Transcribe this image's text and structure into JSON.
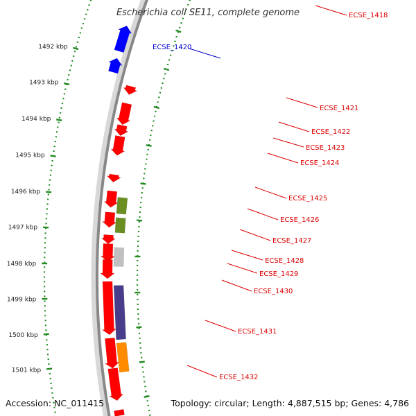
{
  "title": "Escherichia coli SE11, complete genome",
  "footer": {
    "accession": "Accession: NC_011415",
    "topology": "Topology: circular; Length: 4,887,515 bp; Genes: 4,786"
  },
  "colors": {
    "backbone": "#888888",
    "tick_dots": "#228B22",
    "forward_label": "#0000cc",
    "reverse_label": "#dd0000",
    "gene_red": "#ff0000",
    "gene_blue": "#0000ff",
    "gene_olive": "#6b8e23",
    "gene_grey": "#c0c0c0",
    "gene_navy": "#483d8b",
    "gene_orange": "#ff8c00"
  },
  "kbp_ticks": [
    "1492 kbp",
    "1493 kbp",
    "1494 kbp",
    "1495 kbp",
    "1496 kbp",
    "1497 kbp",
    "1498 kbp",
    "1499 kbp",
    "1500 kbp",
    "1501 kbp"
  ],
  "gene_labels": [
    {
      "text": "ECSE_1418",
      "strand": "reverse"
    },
    {
      "text": "ECSE_1420",
      "strand": "forward"
    },
    {
      "text": "ECSE_1421",
      "strand": "reverse"
    },
    {
      "text": "ECSE_1422",
      "strand": "reverse"
    },
    {
      "text": "ECSE_1423",
      "strand": "reverse"
    },
    {
      "text": "ECSE_1424",
      "strand": "reverse"
    },
    {
      "text": "ECSE_1425",
      "strand": "reverse"
    },
    {
      "text": "ECSE_1426",
      "strand": "reverse"
    },
    {
      "text": "ECSE_1427",
      "strand": "reverse"
    },
    {
      "text": "ECSE_1428",
      "strand": "reverse"
    },
    {
      "text": "ECSE_1429",
      "strand": "reverse"
    },
    {
      "text": "ECSE_1430",
      "strand": "reverse"
    },
    {
      "text": "ECSE_1431",
      "strand": "reverse"
    },
    {
      "text": "ECSE_1432",
      "strand": "reverse"
    }
  ]
}
